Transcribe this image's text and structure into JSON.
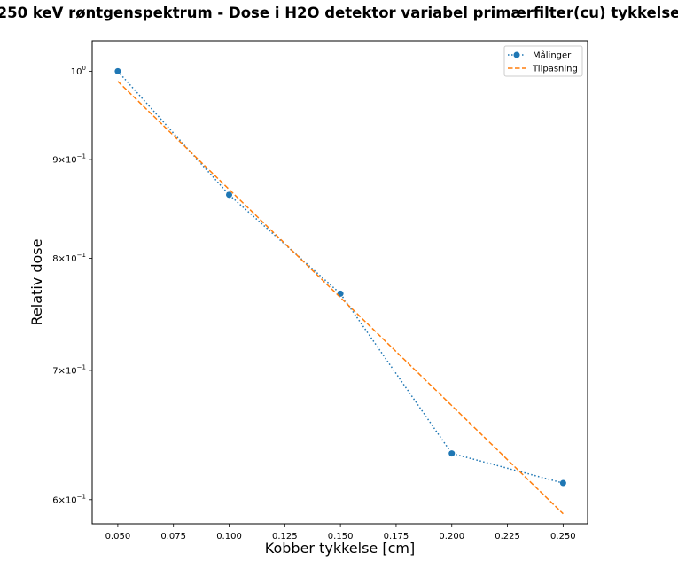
{
  "chart_data": {
    "type": "line",
    "title": "250 keV røntgenspektrum - Dose i H2O detektor variabel primærfilter(cu) tykkelse",
    "xlabel": "Kobber tykkelse [cm]",
    "ylabel": "Relativ dose",
    "xlim": [
      0.0385,
      0.261
    ],
    "ylim": [
      0.583,
      1.037
    ],
    "yscale": "log",
    "grid": false,
    "legend_position": "top-right",
    "xticks": [
      {
        "value": 0.05,
        "label": "0.050"
      },
      {
        "value": 0.075,
        "label": "0.075"
      },
      {
        "value": 0.1,
        "label": "0.100"
      },
      {
        "value": 0.125,
        "label": "0.125"
      },
      {
        "value": 0.15,
        "label": "0.150"
      },
      {
        "value": 0.175,
        "label": "0.175"
      },
      {
        "value": 0.2,
        "label": "0.200"
      },
      {
        "value": 0.225,
        "label": "0.225"
      },
      {
        "value": 0.25,
        "label": "0.250"
      }
    ],
    "yticks": [
      {
        "value": 1.0,
        "base": "10",
        "exp": "0"
      },
      {
        "value": 0.9,
        "mant": "9",
        "base": "10",
        "exp": "−1"
      },
      {
        "value": 0.8,
        "mant": "8",
        "base": "10",
        "exp": "−1"
      },
      {
        "value": 0.7,
        "mant": "7",
        "base": "10",
        "exp": "−1"
      },
      {
        "value": 0.6,
        "mant": "6",
        "base": "10",
        "exp": "−1"
      }
    ],
    "series": [
      {
        "name": "Målinger",
        "color": "#1f77b4",
        "style": "dotted",
        "marker": "circle",
        "x": [
          0.05,
          0.1,
          0.15,
          0.2,
          0.25
        ],
        "y": [
          1.0,
          0.863,
          0.767,
          0.634,
          0.612
        ]
      },
      {
        "name": "Tilpasning",
        "color": "#ff7f0e",
        "style": "dashed",
        "marker": "none",
        "x": [
          0.05,
          0.25
        ],
        "y": [
          0.988,
          0.59
        ]
      }
    ]
  }
}
